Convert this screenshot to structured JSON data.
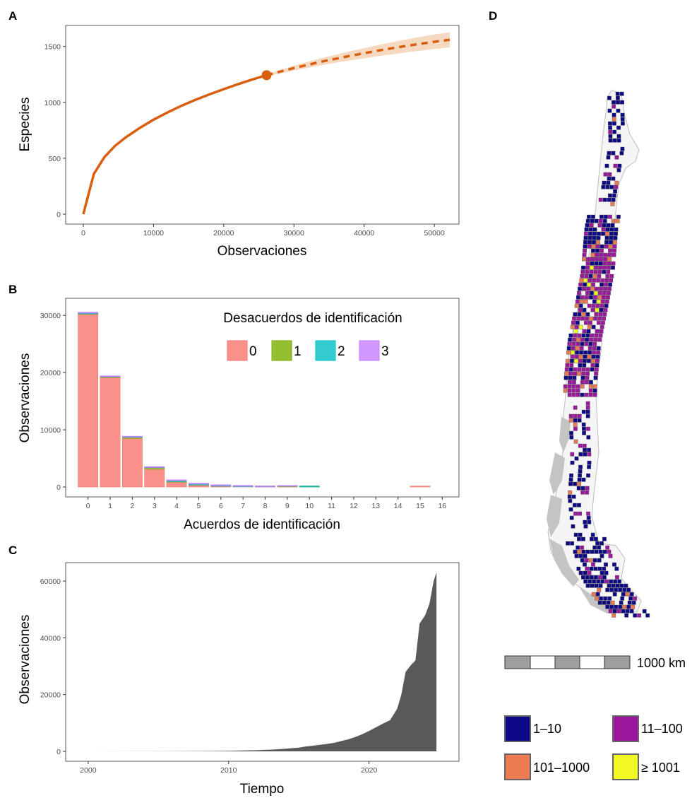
{
  "panels": {
    "A": "A",
    "B": "B",
    "C": "C",
    "D": "D"
  },
  "chart_data": [
    {
      "type": "line",
      "xlabel": "Observaciones",
      "ylabel": "Especies",
      "xlim": [
        0,
        52000
      ],
      "ylim": [
        0,
        1650
      ],
      "x_ticks": [
        "0",
        "10000",
        "20000",
        "30000",
        "40000",
        "50000"
      ],
      "x_tick_values": [
        0,
        10000,
        20000,
        30000,
        40000,
        50000
      ],
      "y_ticks": [
        "0",
        "500",
        "1000",
        "1500"
      ],
      "y_tick_values": [
        0,
        500,
        1000,
        1500
      ],
      "grid": false,
      "color": "#d95f0e",
      "band_color": "#f6d9c1",
      "series": [
        {
          "style": "solid",
          "x": [
            0,
            1500,
            3000,
            4500,
            6000,
            8000,
            10000,
            12000,
            14000,
            16000,
            18000,
            20000,
            22000,
            24000,
            26100
          ],
          "y": [
            0,
            360,
            510,
            610,
            685,
            770,
            845,
            910,
            970,
            1023,
            1072,
            1118,
            1162,
            1203,
            1243
          ]
        },
        {
          "style": "dashed",
          "x": [
            26100,
            30000,
            34000,
            38000,
            42000,
            46000,
            50000,
            52200
          ],
          "y": [
            1243,
            1307,
            1365,
            1416,
            1463,
            1505,
            1542,
            1560
          ]
        }
      ],
      "band": {
        "x": [
          26100,
          30000,
          34000,
          38000,
          42000,
          46000,
          50000,
          52200
        ],
        "lower": [
          1233,
          1285,
          1333,
          1375,
          1413,
          1447,
          1477,
          1492
        ],
        "upper": [
          1253,
          1329,
          1397,
          1457,
          1513,
          1563,
          1607,
          1628
        ]
      },
      "marker": {
        "x": 26100,
        "y": 1243
      }
    },
    {
      "type": "bar",
      "stacked": true,
      "xlabel": "Acuerdos de identificación",
      "ylabel": "Observaciones",
      "ylim": [
        0,
        31500
      ],
      "y_ticks": [
        "0",
        "10000",
        "20000",
        "30000"
      ],
      "y_tick_values": [
        0,
        10000,
        20000,
        30000
      ],
      "categories": [
        "0",
        "1",
        "2",
        "3",
        "4",
        "5",
        "6",
        "7",
        "8",
        "9",
        "10",
        "11",
        "12",
        "13",
        "14",
        "15",
        "16"
      ],
      "grid": false,
      "legend_title": "Desacuerdos de identificación",
      "legend_position": "top-right",
      "series": [
        {
          "name": "0",
          "color": "#f8766d",
          "values": [
            30200,
            19100,
            8500,
            3100,
            850,
            320,
            110,
            40,
            15,
            8,
            5,
            0,
            0,
            0,
            0,
            3,
            0
          ]
        },
        {
          "name": "1",
          "color": "#7cae00",
          "values": [
            60,
            120,
            160,
            260,
            90,
            40,
            20,
            8,
            5,
            90,
            2,
            0,
            0,
            0,
            0,
            0,
            0
          ]
        },
        {
          "name": "2",
          "color": "#00bfc4",
          "values": [
            120,
            30,
            40,
            30,
            150,
            140,
            90,
            60,
            5,
            2,
            2,
            0,
            0,
            0,
            0,
            0,
            0
          ]
        },
        {
          "name": "3",
          "color": "#c77cff",
          "values": [
            5,
            5,
            10,
            20,
            10,
            5,
            3,
            2,
            1,
            1,
            0,
            0,
            0,
            0,
            0,
            0,
            0
          ]
        }
      ]
    },
    {
      "type": "area",
      "xlabel": "Tiempo",
      "ylabel": "Observaciones",
      "xlim": [
        1999,
        2025.8
      ],
      "ylim": [
        0,
        65000
      ],
      "x_ticks": [
        "2000",
        "2010",
        "2020"
      ],
      "x_tick_values": [
        2000,
        2010,
        2020
      ],
      "y_ticks": [
        "0",
        "20000",
        "40000",
        "60000"
      ],
      "y_tick_values": [
        0,
        20000,
        40000,
        60000
      ],
      "grid": false,
      "color": "#595959",
      "x": [
        2000,
        2005,
        2008,
        2010,
        2011,
        2012,
        2013,
        2014,
        2015,
        2015.5,
        2016,
        2016.5,
        2017,
        2017.5,
        2018,
        2018.5,
        2019,
        2019.5,
        2020,
        2020.5,
        2021,
        2021.5,
        2022,
        2022.3,
        2022.6,
        2023,
        2023.3,
        2023.6,
        2024,
        2024.3,
        2024.6,
        2024.8
      ],
      "y": [
        0,
        20,
        80,
        200,
        300,
        420,
        600,
        900,
        1300,
        1700,
        2000,
        2300,
        2600,
        3000,
        3600,
        4200,
        5000,
        6000,
        7200,
        8500,
        9800,
        11000,
        15000,
        20000,
        28000,
        30500,
        32000,
        45000,
        48000,
        52000,
        60000,
        63000
      ]
    }
  ],
  "map": {
    "scale_label": "1000 km",
    "legend": [
      {
        "label": "1–10",
        "color": "#0d0887"
      },
      {
        "label": "11–100",
        "color": "#9c179e"
      },
      {
        "label": "101–1000",
        "color": "#ed7953"
      },
      {
        "label": "≥ 1001",
        "color": "#f0f921"
      }
    ]
  }
}
